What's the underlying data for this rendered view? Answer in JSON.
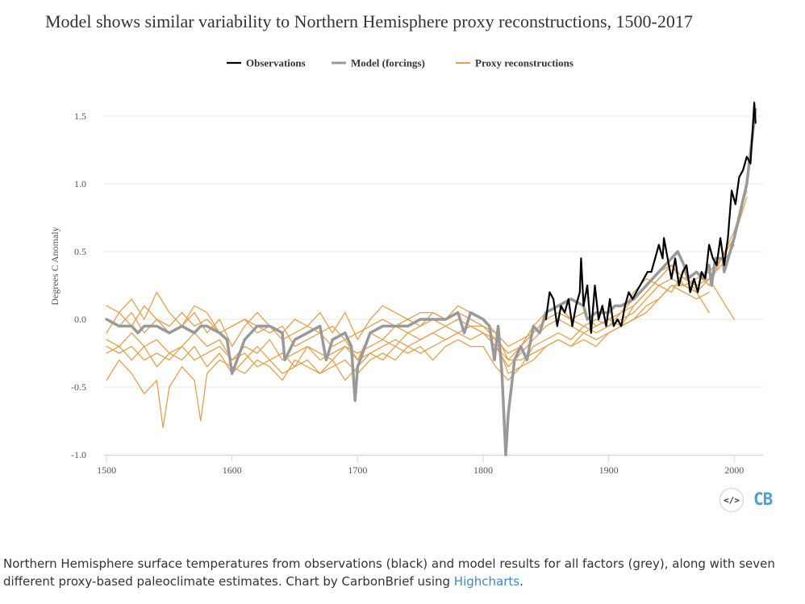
{
  "caption": {
    "text": "Northern Hemisphere surface temperatures from observations (black) and model results for all factors (grey), along with seven different proxy-based paleoclimate estimates. Chart by CarbonBrief using ",
    "link_text": "Highcharts",
    "end": "."
  },
  "embed": {
    "label": "</>"
  },
  "logo": {
    "text": "CB"
  },
  "colors": {
    "observations": "#000000",
    "model": "#999999",
    "proxy": "#e3a04d",
    "grid": "#e6e6e6",
    "axis": "#ccd6eb"
  },
  "chart_data": {
    "type": "line",
    "title": "Model shows similar variability to Northern Hemisphere proxy reconstructions, 1500-2017",
    "xlabel": "",
    "ylabel": "Degrees C Anomaly",
    "xlim": [
      1498,
      2023
    ],
    "ylim": [
      -1.0,
      1.75
    ],
    "x_ticks": [
      1500,
      1600,
      1700,
      1800,
      1900,
      2000
    ],
    "y_ticks": [
      -1.0,
      -0.5,
      0.0,
      0.5,
      1.0,
      1.5
    ],
    "y_tick_labels": [
      "-1.0",
      "-0.5",
      "0.0",
      "0.5",
      "1.0",
      "1.5"
    ],
    "legend_position": "top-center",
    "series": [
      {
        "name": "Observations",
        "color": "#000000",
        "width": 2.2,
        "x": [
          1850,
          1853,
          1856,
          1859,
          1862,
          1865,
          1868,
          1871,
          1874,
          1877,
          1878,
          1880,
          1883,
          1886,
          1889,
          1892,
          1895,
          1898,
          1901,
          1904,
          1907,
          1910,
          1913,
          1916,
          1919,
          1922,
          1925,
          1928,
          1931,
          1934,
          1937,
          1940,
          1943,
          1944,
          1947,
          1950,
          1953,
          1956,
          1959,
          1962,
          1965,
          1968,
          1971,
          1974,
          1977,
          1980,
          1983,
          1986,
          1989,
          1992,
          1995,
          1998,
          2001,
          2004,
          2007,
          2010,
          2013,
          2015,
          2016,
          2017
        ],
        "values": [
          0.0,
          0.2,
          0.15,
          -0.05,
          0.1,
          0.05,
          0.15,
          -0.05,
          0.1,
          0.2,
          0.45,
          0.1,
          0.25,
          -0.1,
          0.25,
          0.0,
          0.1,
          -0.05,
          0.15,
          -0.05,
          0.0,
          -0.05,
          0.1,
          0.2,
          0.15,
          0.2,
          0.25,
          0.3,
          0.35,
          0.35,
          0.45,
          0.55,
          0.45,
          0.6,
          0.45,
          0.3,
          0.45,
          0.25,
          0.35,
          0.4,
          0.2,
          0.3,
          0.2,
          0.35,
          0.3,
          0.55,
          0.45,
          0.4,
          0.6,
          0.4,
          0.6,
          0.95,
          0.85,
          1.05,
          1.1,
          1.2,
          1.15,
          1.45,
          1.6,
          1.45
        ]
      },
      {
        "name": "Model (forcings)",
        "color": "#999999",
        "width": 3.5,
        "x": [
          1500,
          1510,
          1520,
          1525,
          1530,
          1540,
          1550,
          1560,
          1570,
          1575,
          1580,
          1590,
          1596,
          1600,
          1610,
          1620,
          1630,
          1640,
          1642,
          1650,
          1660,
          1670,
          1675,
          1680,
          1690,
          1695,
          1698,
          1700,
          1710,
          1720,
          1730,
          1740,
          1750,
          1760,
          1770,
          1780,
          1785,
          1790,
          1800,
          1805,
          1809,
          1812,
          1815,
          1818,
          1820,
          1825,
          1830,
          1835,
          1840,
          1845,
          1850,
          1860,
          1870,
          1880,
          1883,
          1890,
          1900,
          1905,
          1910,
          1920,
          1930,
          1940,
          1950,
          1955,
          1960,
          1963,
          1970,
          1975,
          1980,
          1982,
          1985,
          1991,
          1992,
          2000,
          2010,
          2017
        ],
        "values": [
          0.0,
          -0.05,
          -0.05,
          -0.1,
          -0.05,
          -0.05,
          -0.1,
          -0.05,
          -0.1,
          -0.05,
          -0.05,
          -0.1,
          -0.15,
          -0.4,
          -0.15,
          -0.05,
          -0.05,
          -0.1,
          -0.3,
          -0.15,
          -0.1,
          -0.05,
          -0.3,
          -0.15,
          -0.1,
          -0.2,
          -0.6,
          -0.35,
          -0.1,
          -0.05,
          -0.05,
          -0.05,
          0.0,
          0.0,
          0.0,
          0.05,
          -0.1,
          0.05,
          0.0,
          -0.05,
          -0.3,
          -0.05,
          -0.4,
          -1.0,
          -0.7,
          -0.3,
          -0.2,
          -0.3,
          -0.05,
          -0.1,
          0.05,
          0.1,
          0.15,
          0.1,
          0.0,
          0.05,
          0.05,
          0.1,
          0.1,
          0.15,
          0.25,
          0.35,
          0.45,
          0.5,
          0.4,
          0.3,
          0.35,
          0.3,
          0.4,
          0.25,
          0.45,
          0.45,
          0.35,
          0.6,
          1.0,
          1.55
        ]
      },
      {
        "name": "Proxy reconstructions",
        "color": "#e3a04d",
        "width": 1.3,
        "x": [
          1500,
          1510,
          1520,
          1530,
          1540,
          1550,
          1560,
          1570,
          1580,
          1590,
          1600,
          1610,
          1620,
          1630,
          1640,
          1650,
          1660,
          1670,
          1680,
          1690,
          1700,
          1710,
          1720,
          1730,
          1740,
          1750,
          1760,
          1770,
          1780,
          1790,
          1800,
          1810,
          1820,
          1830,
          1840,
          1850,
          1860,
          1870,
          1880,
          1890,
          1900,
          1910,
          1920,
          1930,
          1940,
          1950,
          1960,
          1970,
          1980,
          1990,
          2000
        ],
        "values": [
          -0.1,
          0.05,
          -0.05,
          0.1,
          0.0,
          -0.1,
          -0.05,
          0.05,
          -0.1,
          0.0,
          -0.2,
          -0.05,
          0.05,
          -0.05,
          -0.1,
          0.0,
          -0.05,
          0.05,
          -0.1,
          0.05,
          -0.15,
          0.0,
          0.1,
          0.05,
          0.0,
          0.05,
          0.05,
          0.0,
          0.1,
          0.05,
          0.0,
          -0.1,
          -0.3,
          -0.2,
          -0.05,
          0.05,
          0.1,
          0.0,
          0.05,
          -0.05,
          0.0,
          0.05,
          0.2,
          0.3,
          0.25,
          0.2,
          0.35,
          0.2,
          0.3,
          0.15,
          0.0
        ]
      },
      {
        "name": "Proxy reconstructions",
        "color": "#e3a04d",
        "width": 1.3,
        "show_in_legend": false,
        "x": [
          1500,
          1510,
          1520,
          1530,
          1540,
          1545,
          1550,
          1560,
          1570,
          1575,
          1580,
          1590,
          1600,
          1610,
          1620,
          1630,
          1640,
          1650,
          1660,
          1670,
          1680,
          1690,
          1700,
          1710,
          1720,
          1730,
          1740,
          1750,
          1760,
          1770,
          1780,
          1790,
          1800,
          1810,
          1820,
          1830,
          1840,
          1850,
          1860,
          1870,
          1880,
          1890,
          1900,
          1910,
          1920,
          1930,
          1940,
          1950,
          1960,
          1970,
          1980
        ],
        "values": [
          -0.45,
          -0.3,
          -0.4,
          -0.55,
          -0.45,
          -0.8,
          -0.5,
          -0.35,
          -0.45,
          -0.75,
          -0.4,
          -0.3,
          -0.35,
          -0.4,
          -0.3,
          -0.35,
          -0.45,
          -0.3,
          -0.35,
          -0.4,
          -0.3,
          -0.45,
          -0.35,
          -0.25,
          -0.3,
          -0.2,
          -0.25,
          -0.2,
          -0.3,
          -0.2,
          -0.15,
          -0.2,
          -0.2,
          -0.35,
          -0.45,
          -0.35,
          -0.3,
          -0.2,
          -0.15,
          -0.2,
          -0.15,
          -0.2,
          -0.1,
          -0.05,
          0.0,
          0.1,
          0.15,
          0.25,
          0.2,
          0.15,
          0.2
        ]
      },
      {
        "name": "Proxy reconstructions",
        "color": "#e3a04d",
        "width": 1.3,
        "show_in_legend": false,
        "x": [
          1500,
          1510,
          1520,
          1530,
          1540,
          1550,
          1560,
          1570,
          1580,
          1590,
          1600,
          1610,
          1620,
          1630,
          1640,
          1650,
          1660,
          1670,
          1680,
          1690,
          1700,
          1710,
          1720,
          1730,
          1740,
          1750,
          1760,
          1770,
          1780,
          1790,
          1800,
          1810,
          1820,
          1830,
          1840,
          1850,
          1860,
          1870,
          1880,
          1890,
          1900,
          1910,
          1920,
          1930,
          1940,
          1950,
          1960,
          1970,
          1980,
          1990,
          2000,
          2010
        ],
        "values": [
          -0.2,
          -0.25,
          -0.2,
          -0.3,
          -0.25,
          -0.3,
          -0.2,
          -0.3,
          -0.25,
          -0.2,
          -0.3,
          -0.25,
          -0.35,
          -0.3,
          -0.4,
          -0.35,
          -0.3,
          -0.4,
          -0.35,
          -0.3,
          -0.4,
          -0.3,
          -0.25,
          -0.3,
          -0.2,
          -0.25,
          -0.2,
          -0.15,
          -0.1,
          -0.15,
          -0.1,
          -0.2,
          -0.3,
          -0.3,
          -0.25,
          -0.2,
          -0.15,
          -0.2,
          -0.1,
          -0.15,
          -0.1,
          -0.05,
          0.0,
          0.05,
          0.15,
          0.25,
          0.25,
          0.3,
          0.35,
          0.45,
          0.6,
          0.9
        ]
      },
      {
        "name": "Proxy reconstructions",
        "color": "#e3a04d",
        "width": 1.3,
        "show_in_legend": false,
        "x": [
          1500,
          1510,
          1520,
          1530,
          1540,
          1550,
          1560,
          1570,
          1580,
          1590,
          1600,
          1610,
          1620,
          1630,
          1640,
          1650,
          1660,
          1670,
          1680,
          1690,
          1700,
          1710,
          1720,
          1730,
          1740,
          1750,
          1760,
          1770,
          1780,
          1790,
          1800,
          1810,
          1820,
          1830,
          1840,
          1850,
          1860,
          1870,
          1880,
          1890,
          1900,
          1910,
          1920,
          1930,
          1940,
          1950,
          1960,
          1970,
          1980,
          1990,
          2000
        ],
        "values": [
          0.1,
          0.05,
          0.15,
          0.0,
          0.2,
          0.05,
          -0.05,
          0.1,
          0.05,
          -0.1,
          -0.05,
          0.0,
          -0.05,
          -0.1,
          -0.05,
          -0.2,
          -0.15,
          -0.1,
          -0.2,
          -0.15,
          -0.3,
          -0.1,
          -0.15,
          -0.05,
          -0.1,
          -0.05,
          0.0,
          -0.05,
          0.0,
          -0.05,
          -0.1,
          -0.2,
          -0.35,
          -0.25,
          -0.15,
          -0.05,
          0.0,
          -0.05,
          -0.1,
          -0.05,
          0.0,
          0.05,
          0.15,
          0.25,
          0.35,
          0.4,
          0.3,
          0.25,
          0.3,
          0.45,
          0.6
        ]
      },
      {
        "name": "Proxy reconstructions",
        "color": "#e3a04d",
        "width": 1.3,
        "show_in_legend": false,
        "x": [
          1500,
          1510,
          1520,
          1530,
          1540,
          1550,
          1560,
          1570,
          1580,
          1590,
          1600,
          1610,
          1620,
          1630,
          1640,
          1650,
          1660,
          1670,
          1680,
          1690,
          1700,
          1710,
          1720,
          1730,
          1740,
          1750,
          1760,
          1770,
          1780,
          1790,
          1800,
          1810,
          1820,
          1830,
          1840,
          1850,
          1860,
          1870,
          1880,
          1890,
          1900,
          1910,
          1920,
          1930,
          1940,
          1950,
          1960,
          1970,
          1980,
          1990,
          2000,
          2010
        ],
        "values": [
          -0.25,
          -0.2,
          -0.3,
          -0.2,
          -0.35,
          -0.25,
          -0.3,
          -0.2,
          -0.35,
          -0.25,
          -0.4,
          -0.3,
          -0.2,
          -0.3,
          -0.25,
          -0.35,
          -0.2,
          -0.25,
          -0.3,
          -0.2,
          -0.25,
          -0.2,
          -0.15,
          -0.2,
          -0.1,
          -0.15,
          -0.1,
          -0.05,
          -0.1,
          -0.05,
          -0.05,
          -0.1,
          -0.2,
          -0.15,
          -0.1,
          0.0,
          0.05,
          0.0,
          0.05,
          -0.05,
          0.0,
          -0.05,
          0.1,
          0.2,
          0.3,
          0.4,
          0.3,
          0.35,
          0.25,
          0.45,
          0.65,
          0.95
        ]
      },
      {
        "name": "Proxy reconstructions",
        "color": "#e3a04d",
        "width": 1.3,
        "show_in_legend": false,
        "x": [
          1500,
          1510,
          1520,
          1530,
          1540,
          1550,
          1560,
          1570,
          1580,
          1590,
          1600,
          1610,
          1620,
          1630,
          1640,
          1650,
          1660,
          1670,
          1680,
          1690,
          1700,
          1710,
          1720,
          1730,
          1740,
          1750,
          1760,
          1770,
          1780,
          1790,
          1800,
          1810,
          1820,
          1830,
          1840,
          1850,
          1860,
          1870,
          1880,
          1890,
          1900,
          1910,
          1920,
          1930,
          1940,
          1950,
          1960,
          1970,
          1980
        ],
        "values": [
          0.0,
          -0.05,
          0.05,
          -0.1,
          0.0,
          -0.05,
          0.05,
          -0.05,
          0.0,
          -0.1,
          -0.05,
          0.0,
          -0.1,
          -0.05,
          -0.15,
          -0.1,
          -0.05,
          -0.1,
          -0.05,
          -0.15,
          -0.1,
          -0.05,
          0.0,
          -0.05,
          0.0,
          -0.05,
          0.05,
          0.0,
          0.05,
          0.0,
          -0.05,
          -0.15,
          -0.25,
          -0.2,
          -0.1,
          0.0,
          0.05,
          0.0,
          -0.05,
          0.0,
          -0.05,
          0.05,
          0.1,
          0.2,
          0.3,
          0.4,
          0.25,
          0.2,
          0.05
        ]
      },
      {
        "name": "Proxy reconstructions",
        "color": "#e3a04d",
        "width": 1.3,
        "show_in_legend": false,
        "x": [
          1500,
          1510,
          1520,
          1530,
          1540,
          1550,
          1560,
          1570,
          1580,
          1590,
          1600,
          1610,
          1620,
          1630,
          1640,
          1650,
          1660,
          1670,
          1680,
          1690,
          1700,
          1710,
          1720,
          1730,
          1740,
          1750,
          1760,
          1770,
          1780,
          1790,
          1800,
          1810,
          1820,
          1830,
          1840,
          1850,
          1860,
          1870,
          1880,
          1890,
          1900,
          1910,
          1920,
          1930,
          1940,
          1950,
          1960,
          1970,
          1980,
          1990,
          2000
        ],
        "values": [
          -0.15,
          -0.2,
          -0.1,
          -0.2,
          -0.15,
          -0.25,
          -0.2,
          -0.1,
          -0.2,
          -0.15,
          -0.3,
          -0.2,
          -0.25,
          -0.15,
          -0.3,
          -0.25,
          -0.2,
          -0.3,
          -0.25,
          -0.2,
          -0.3,
          -0.25,
          -0.2,
          -0.15,
          -0.2,
          -0.15,
          -0.1,
          -0.15,
          -0.1,
          -0.05,
          -0.1,
          -0.15,
          -0.4,
          -0.35,
          -0.2,
          -0.15,
          -0.1,
          -0.15,
          -0.05,
          -0.1,
          -0.05,
          0.0,
          0.05,
          0.15,
          0.25,
          0.3,
          0.25,
          0.2,
          0.3,
          0.4,
          0.55
        ]
      }
    ]
  }
}
